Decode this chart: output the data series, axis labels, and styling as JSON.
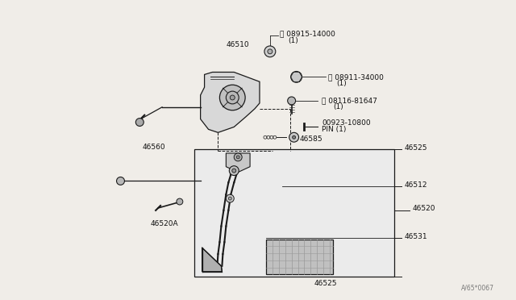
{
  "bg_color": "#f0ede8",
  "line_color": "#1a1a1a",
  "text_color": "#111111",
  "figsize": [
    6.4,
    3.72
  ],
  "dpi": 100,
  "watermark": "A/65*0067"
}
